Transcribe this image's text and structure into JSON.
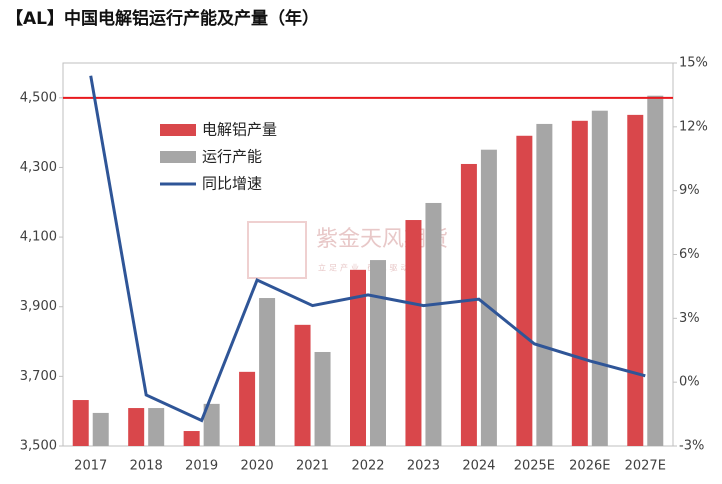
{
  "chart_data": {
    "type": "bar_line",
    "title": "【AL】中国电解铝运行产能及产量（年）",
    "watermark": [
      "紫金天风期货",
      "立足产业 研究驱动"
    ],
    "categories": [
      "2017",
      "2018",
      "2019",
      "2020",
      "2021",
      "2022",
      "2023",
      "2024",
      "2025E",
      "2026E",
      "2027E"
    ],
    "series": [
      {
        "name": "电解铝产量",
        "type": "bar",
        "color": "#d9474b",
        "values": [
          3632,
          3609,
          3543,
          3713,
          3848,
          4006,
          4149,
          4310,
          4391,
          4434,
          4451
        ]
      },
      {
        "name": "运行产能",
        "type": "bar",
        "color": "#a6a6a6",
        "values": [
          3595,
          3609,
          3621,
          3925,
          3770,
          4034,
          4198,
          4351,
          4425,
          4463,
          4506
        ]
      },
      {
        "name": "同比增速",
        "type": "line",
        "axis": "y2",
        "color": "#2f5597",
        "values": [
          14.4,
          -0.6,
          -1.8,
          4.8,
          3.6,
          4.1,
          3.6,
          3.9,
          1.8,
          1.0,
          0.3
        ]
      }
    ],
    "reference_line": {
      "value": 4500,
      "color": "#e8191e"
    },
    "ylim": [
      3500,
      4600
    ],
    "yticks": [
      {
        "value": 3500,
        "label": "3,500"
      },
      {
        "value": 3700,
        "label": "3,700"
      },
      {
        "value": 3900,
        "label": "3,900"
      },
      {
        "value": 4100,
        "label": "4,100"
      },
      {
        "value": 4300,
        "label": "4,300"
      },
      {
        "value": 4500,
        "label": "4,500"
      }
    ],
    "y2lim": [
      -3,
      15
    ],
    "y2ticks": [
      {
        "value": -3,
        "label": "-3%"
      },
      {
        "value": 0,
        "label": "0%"
      },
      {
        "value": 3,
        "label": "3%"
      },
      {
        "value": 6,
        "label": "6%"
      },
      {
        "value": 9,
        "label": "9%"
      },
      {
        "value": 12,
        "label": "12%"
      },
      {
        "value": 15,
        "label": "15%"
      }
    ]
  }
}
